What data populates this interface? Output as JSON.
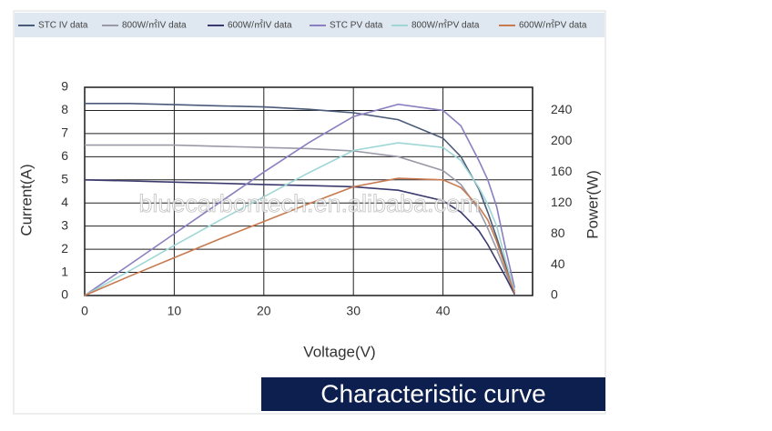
{
  "chart_data": {
    "type": "line",
    "x_label": "Voltage(V)",
    "y_label": "Current(A)",
    "y2_label": "Power(W)",
    "watermark": "bluecarbontech.en.alibaba.com",
    "banner": "Characteristic curve",
    "x": [
      0,
      5,
      10,
      15,
      20,
      25,
      30,
      35,
      40,
      42,
      44,
      45,
      46,
      47,
      48,
      49
    ],
    "series": [
      {
        "name": "STC IV data",
        "color": "#4a5a78",
        "values": [
          8.3,
          8.3,
          8.25,
          8.2,
          8.15,
          8.05,
          7.9,
          7.6,
          6.8,
          6.0,
          4.6,
          3.6,
          2.5,
          1.3,
          0.2,
          null
        ]
      },
      {
        "name": "800W/㎡IV data",
        "color": "#9a9aa8",
        "values": [
          6.5,
          6.5,
          6.5,
          6.45,
          6.4,
          6.35,
          6.25,
          6.0,
          5.4,
          4.8,
          3.7,
          2.9,
          2.0,
          1.0,
          0.1,
          null
        ]
      },
      {
        "name": "600W/㎡IV data",
        "color": "#3a3a6e",
        "values": [
          5.0,
          4.95,
          4.9,
          4.85,
          4.8,
          4.75,
          4.7,
          4.55,
          4.1,
          3.6,
          2.8,
          2.2,
          1.5,
          0.8,
          0.05,
          null
        ]
      },
      {
        "name": "STC PV data",
        "color": "#8a7fc0",
        "axis": "y2",
        "values": [
          0,
          40,
          80,
          120,
          160,
          198,
          232,
          248,
          240,
          220,
          175,
          150,
          115,
          60,
          10,
          null
        ]
      },
      {
        "name": "800W/㎡PV data",
        "color": "#9fd6d6",
        "axis": "y2",
        "values": [
          0,
          32,
          65,
          97,
          128,
          159,
          188,
          198,
          192,
          175,
          140,
          118,
          90,
          45,
          5,
          null
        ]
      },
      {
        "name": "600W/㎡PV data",
        "color": "#c87a50",
        "axis": "y2",
        "values": [
          0,
          25,
          49,
          73,
          96,
          119,
          141,
          152,
          150,
          140,
          115,
          98,
          70,
          35,
          3,
          null
        ]
      }
    ],
    "xlim": [
      0,
      50
    ],
    "xticks": [
      0,
      10,
      20,
      30,
      40
    ],
    "ylim": [
      0,
      9
    ],
    "yticks": [
      0,
      1,
      2,
      3,
      4,
      5,
      6,
      7,
      8,
      9
    ],
    "y2lim": [
      0,
      270
    ],
    "y2ticks": [
      0,
      40,
      80,
      120,
      160,
      200,
      240
    ],
    "grid": true,
    "legend": "top"
  }
}
